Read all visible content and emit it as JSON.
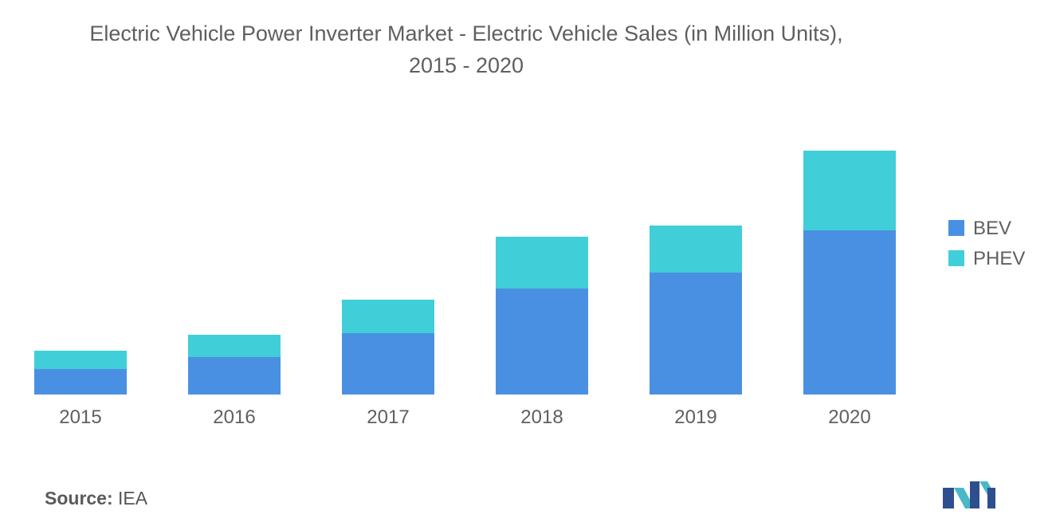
{
  "title_line1": "Electric Vehicle Power Inverter Market - Electric Vehicle Sales (in Million Units),",
  "title_line2": "2015 - 2020",
  "source": {
    "label": "Source:",
    "value": "IEA"
  },
  "colors": {
    "BEV": "#4a90e2",
    "PHEV": "#40cfd9",
    "text": "#5f5f5f"
  },
  "chart_data": {
    "type": "bar",
    "stacked": true,
    "title": "Electric Vehicle Power Inverter Market - Electric Vehicle Sales (in Million Units), 2015 - 2020",
    "categories": [
      "2015",
      "2016",
      "2017",
      "2018",
      "2019",
      "2020"
    ],
    "series": [
      {
        "name": "BEV",
        "values": [
          0.32,
          0.47,
          0.77,
          1.33,
          1.53,
          2.06
        ]
      },
      {
        "name": "PHEV",
        "values": [
          0.23,
          0.28,
          0.42,
          0.65,
          0.59,
          1.0
        ]
      }
    ],
    "ylim": [
      0,
      3.1
    ],
    "grid": false,
    "legend": "right"
  }
}
